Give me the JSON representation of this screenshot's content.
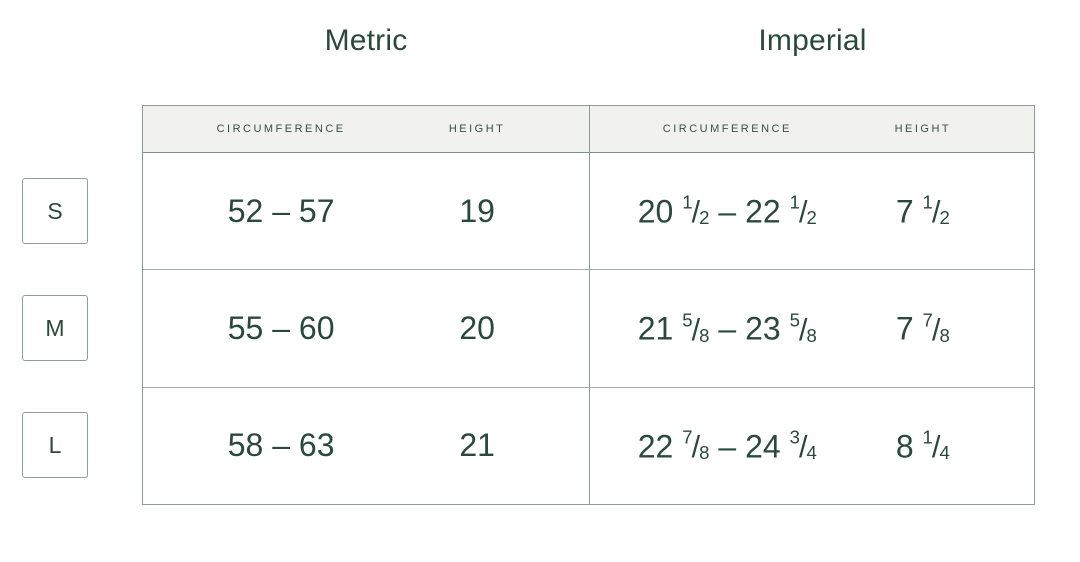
{
  "titles": {
    "metric": "Metric",
    "imperial": "Imperial"
  },
  "table": {
    "metric_headers": {
      "circumference": "CIRCUMFERENCE",
      "height": "HEIGHT"
    },
    "imperial_headers": {
      "circumference": "CIRCUMFERENCE",
      "height": "HEIGHT"
    },
    "rows": [
      {
        "size": "S",
        "metric": {
          "circumference": "52 – 57",
          "height": "19"
        },
        "imperial": {
          "circumference": "20 1/2 – 22 1/2",
          "height": "7 1/2"
        }
      },
      {
        "size": "M",
        "metric": {
          "circumference": "55 – 60",
          "height": "20"
        },
        "imperial": {
          "circumference": "21 5/8 – 23 5/8",
          "height": "7 7/8"
        }
      },
      {
        "size": "L",
        "metric": {
          "circumference": "58 – 63",
          "height": "21"
        },
        "imperial": {
          "circumference": "22 7/8 – 24 3/4",
          "height": "8 1/4"
        }
      }
    ]
  },
  "colors": {
    "text": "#2a493c",
    "header_bg": "#f1f1ee",
    "outer_border": "#8c9c94",
    "row_border": "#a2b0a9",
    "badge_border": "#90a098"
  }
}
